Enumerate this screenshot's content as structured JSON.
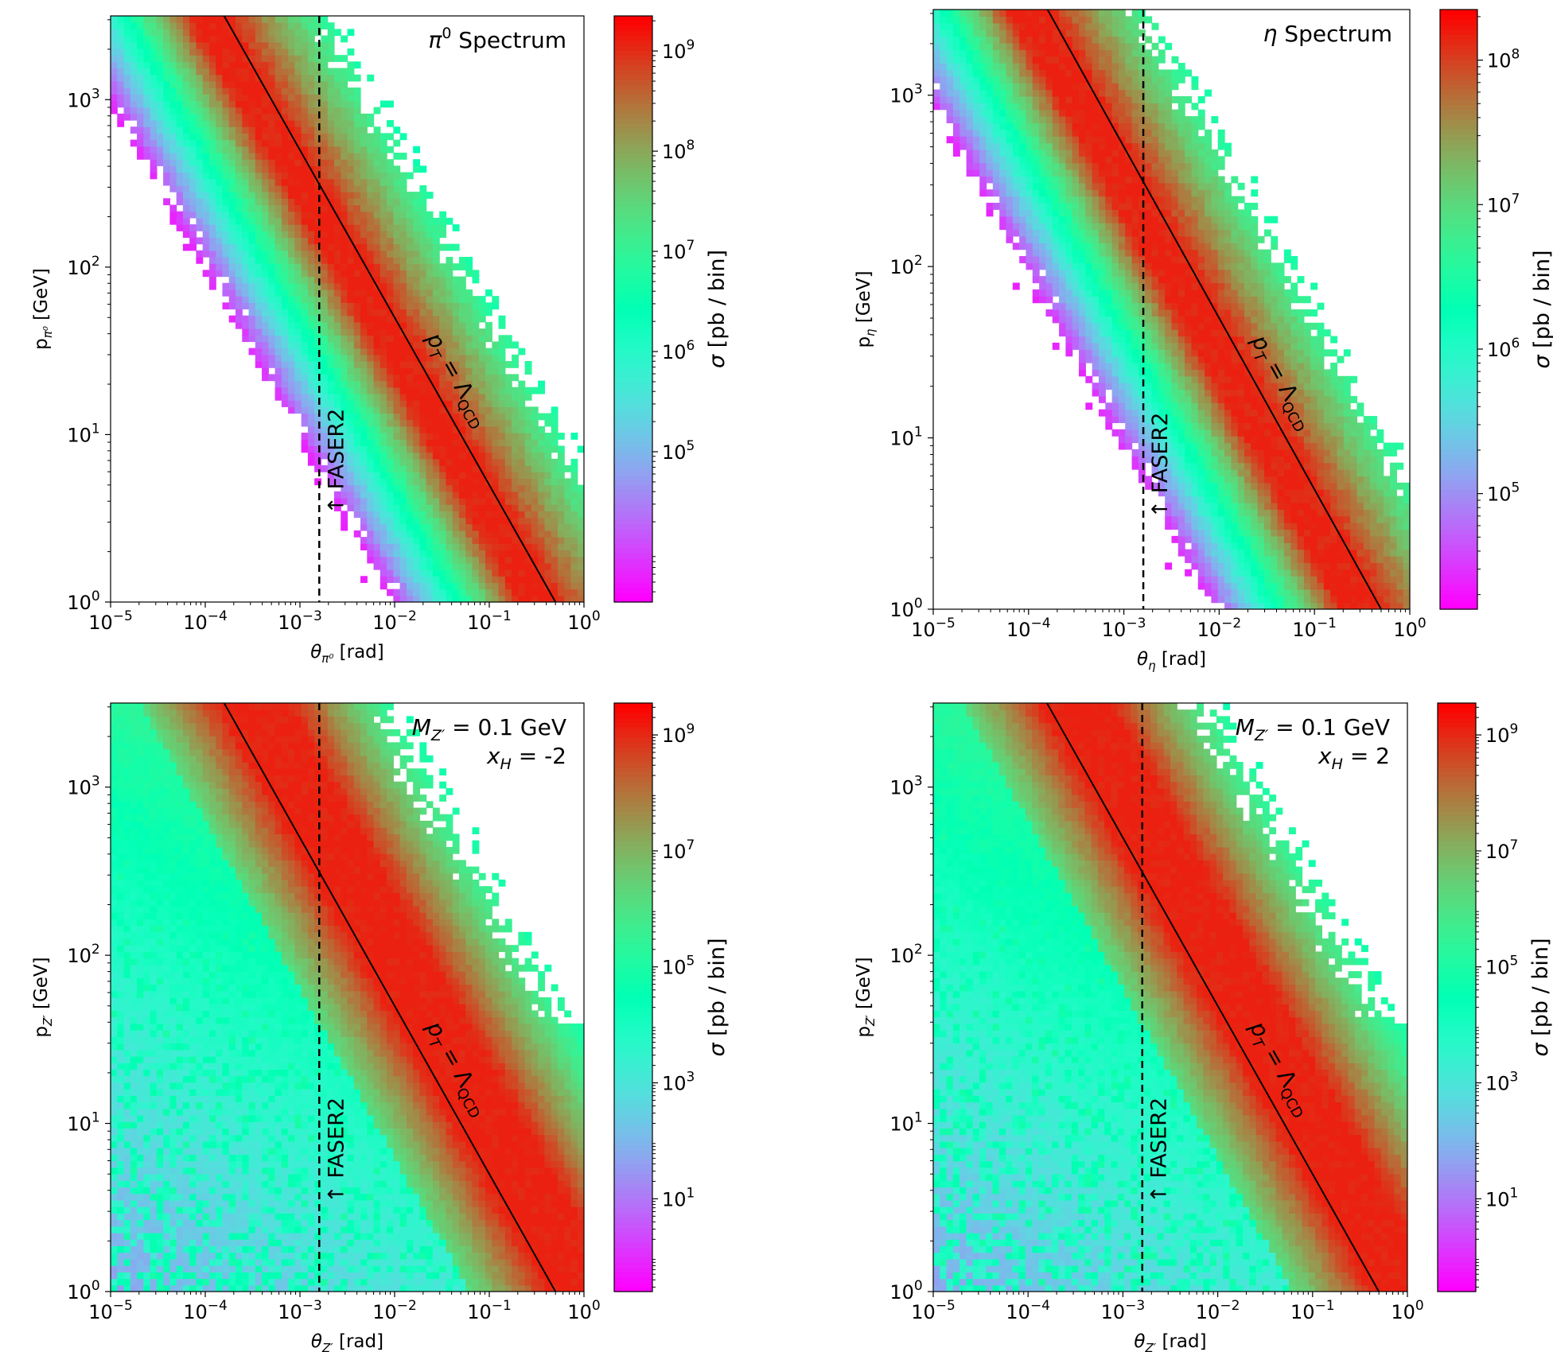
{
  "chart_data": [
    {
      "type": "heatmap",
      "title": "π⁰ Spectrum",
      "annotation_lines": [
        "π⁰ Spectrum"
      ],
      "xlabel": "θπ⁰ [rad]",
      "xlabel_parts": {
        "sym": "θ",
        "sub": "π⁰",
        "unit": " [rad]"
      },
      "ylabel": "pπ⁰ [GeV]",
      "ylabel_parts": {
        "sym": "p",
        "sub": "π⁰",
        "unit": " [GeV]"
      },
      "colorbar_label": "σ [pb / bin]",
      "x_log_range": [
        -5,
        0
      ],
      "y_log_range": [
        0,
        3.5
      ],
      "x_ticks": [
        {
          "exp": "−5",
          "v": -5
        },
        {
          "exp": "−4",
          "v": -4
        },
        {
          "exp": "−3",
          "v": -3
        },
        {
          "exp": "−2",
          "v": -2
        },
        {
          "exp": "−1",
          "v": -1
        },
        {
          "exp": "0",
          "v": 0
        }
      ],
      "y_ticks": [
        {
          "exp": "0",
          "v": 0
        },
        {
          "exp": "1",
          "v": 1
        },
        {
          "exp": "2",
          "v": 2
        },
        {
          "exp": "3",
          "v": 3
        }
      ],
      "colorbar_log_range": [
        3.5,
        9.35
      ],
      "colorbar_ticks": [
        {
          "exp": "5",
          "v": 5
        },
        {
          "exp": "6",
          "v": 6
        },
        {
          "exp": "7",
          "v": 7
        },
        {
          "exp": "8",
          "v": 8
        },
        {
          "exp": "9",
          "v": 9
        }
      ],
      "faser2_theta": 0.0016,
      "faser2_label": "↑ FASER2",
      "pt_line_label": "pT = ΛQCD",
      "pt_line_gev": 0.5,
      "cmap_range": [
        0.02,
        0.96
      ],
      "ridge_offset": 1.0,
      "width": 0.43,
      "floor": -0.2,
      "noise": 1
    },
    {
      "type": "heatmap",
      "title": "η Spectrum",
      "annotation_lines": [
        "η Spectrum"
      ],
      "xlabel": "θη [rad]",
      "xlabel_parts": {
        "sym": "θ",
        "sub": "η",
        "unit": " [rad]"
      },
      "ylabel": "pη [GeV]",
      "ylabel_parts": {
        "sym": "p",
        "sub": "η",
        "unit": " [GeV]"
      },
      "colorbar_label": "σ [pb / bin]",
      "x_log_range": [
        -5,
        0
      ],
      "y_log_range": [
        0,
        3.5
      ],
      "x_ticks": [
        {
          "exp": "−5",
          "v": -5
        },
        {
          "exp": "−4",
          "v": -4
        },
        {
          "exp": "−3",
          "v": -3
        },
        {
          "exp": "−2",
          "v": -2
        },
        {
          "exp": "−1",
          "v": -1
        },
        {
          "exp": "0",
          "v": 0
        }
      ],
      "y_ticks": [
        {
          "exp": "0",
          "v": 0
        },
        {
          "exp": "1",
          "v": 1
        },
        {
          "exp": "2",
          "v": 2
        },
        {
          "exp": "3",
          "v": 3
        }
      ],
      "colorbar_log_range": [
        4.2,
        8.35
      ],
      "colorbar_ticks": [
        {
          "exp": "5",
          "v": 5
        },
        {
          "exp": "6",
          "v": 6
        },
        {
          "exp": "7",
          "v": 7
        },
        {
          "exp": "8",
          "v": 8
        }
      ],
      "faser2_theta": 0.0016,
      "faser2_label": "↑ FASER2",
      "pt_line_label": "pT = ΛQCD",
      "pt_line_gev": 0.5,
      "cmap_range": [
        0.02,
        0.96
      ],
      "ridge_offset": 1.05,
      "width": 0.43,
      "floor": -0.2,
      "noise": 1
    },
    {
      "type": "heatmap",
      "title": "MZ′ = 0.1 GeV, xH = -2",
      "annotation_lines": [
        "MZ′ = 0.1 GeV",
        "xH = -2"
      ],
      "xlabel": "θZ′ [rad]",
      "xlabel_parts": {
        "sym": "θ",
        "sub": "Z′",
        "unit": " [rad]"
      },
      "ylabel": "pZ′ [GeV]",
      "ylabel_parts": {
        "sym": "p",
        "sub": "Z′",
        "unit": " [GeV]"
      },
      "colorbar_label": "σ [pb / bin]",
      "x_log_range": [
        -5,
        0
      ],
      "y_log_range": [
        0,
        3.5
      ],
      "x_ticks": [
        {
          "exp": "−5",
          "v": -5
        },
        {
          "exp": "−4",
          "v": -4
        },
        {
          "exp": "−3",
          "v": -3
        },
        {
          "exp": "−2",
          "v": -2
        },
        {
          "exp": "−1",
          "v": -1
        },
        {
          "exp": "0",
          "v": 0
        }
      ],
      "y_ticks": [
        {
          "exp": "0",
          "v": 0
        },
        {
          "exp": "1",
          "v": 1
        },
        {
          "exp": "2",
          "v": 2
        },
        {
          "exp": "3",
          "v": 3
        }
      ],
      "colorbar_log_range": [
        -0.6,
        9.55
      ],
      "colorbar_ticks": [
        {
          "exp": "1",
          "v": 1
        },
        {
          "exp": "3",
          "v": 3
        },
        {
          "exp": "5",
          "v": 5
        },
        {
          "exp": "7",
          "v": 7
        },
        {
          "exp": "9",
          "v": 9
        }
      ],
      "faser2_theta": 0.0016,
      "faser2_label": "↑ FASER2",
      "pt_line_label": "pT = ΛQCD",
      "pt_line_gev": 0.5,
      "cmap_range": [
        0.12,
        0.96
      ],
      "ridge_offset": 0.3,
      "width": 0.62,
      "floor": 0.18,
      "noise": 2
    },
    {
      "type": "heatmap",
      "title": "MZ′ = 0.1 GeV, xH = 2",
      "annotation_lines": [
        "MZ′ = 0.1 GeV",
        "xH = 2"
      ],
      "xlabel": "θZ′ [rad]",
      "xlabel_parts": {
        "sym": "θ",
        "sub": "Z′",
        "unit": " [rad]"
      },
      "ylabel": "pZ′ [GeV]",
      "ylabel_parts": {
        "sym": "p",
        "sub": "Z′",
        "unit": " [GeV]"
      },
      "colorbar_label": "σ [pb / bin]",
      "x_log_range": [
        -5,
        0
      ],
      "y_log_range": [
        0,
        3.5
      ],
      "x_ticks": [
        {
          "exp": "−5",
          "v": -5
        },
        {
          "exp": "−4",
          "v": -4
        },
        {
          "exp": "−3",
          "v": -3
        },
        {
          "exp": "−2",
          "v": -2
        },
        {
          "exp": "−1",
          "v": -1
        },
        {
          "exp": "0",
          "v": 0
        }
      ],
      "y_ticks": [
        {
          "exp": "0",
          "v": 0
        },
        {
          "exp": "1",
          "v": 1
        },
        {
          "exp": "2",
          "v": 2
        },
        {
          "exp": "3",
          "v": 3
        }
      ],
      "colorbar_log_range": [
        -0.6,
        9.55
      ],
      "colorbar_ticks": [
        {
          "exp": "1",
          "v": 1
        },
        {
          "exp": "3",
          "v": 3
        },
        {
          "exp": "5",
          "v": 5
        },
        {
          "exp": "7",
          "v": 7
        },
        {
          "exp": "9",
          "v": 9
        }
      ],
      "faser2_theta": 0.0016,
      "faser2_label": "↑ FASER2",
      "pt_line_label": "pT = ΛQCD",
      "pt_line_gev": 0.5,
      "cmap_range": [
        0.12,
        0.96
      ],
      "ridge_offset": 0.3,
      "width": 0.62,
      "floor": 0.18,
      "noise": 2
    }
  ]
}
